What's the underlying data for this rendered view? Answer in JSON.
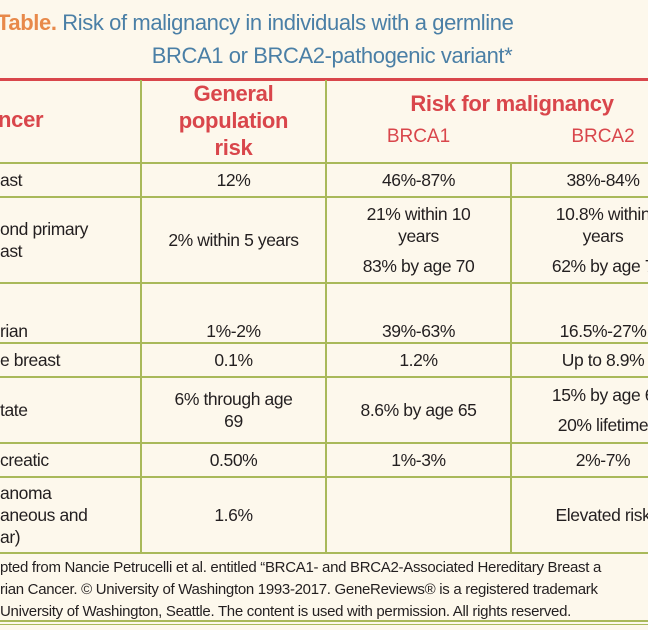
{
  "title": {
    "label": "Table.",
    "line1": "Risk of malignancy in individuals with a germline",
    "line2": "BRCA1 or BRCA2-pathogenic variant*"
  },
  "header": {
    "cancer": "ncer",
    "general": [
      "General",
      "population",
      "risk"
    ],
    "risk": "Risk for malignancy",
    "brca1": "BRCA1",
    "brca2": "BRCA2"
  },
  "rows": [
    {
      "cancer": [
        "ast"
      ],
      "general": [
        "12%"
      ],
      "brca1": [
        "46%-87%"
      ],
      "brca2": [
        "38%-84%"
      ]
    },
    {
      "cancer": [
        "ond primary",
        "ast"
      ],
      "general": [
        "2% within 5 years"
      ],
      "brca1": [
        "21% within 10",
        "years",
        "83% by age 70"
      ],
      "brca2": [
        "10.8% within",
        "years",
        "62% by age 7"
      ]
    },
    {
      "cancer": [
        "rian"
      ],
      "general": [
        "1%-2%"
      ],
      "brca1": [
        "39%-63%"
      ],
      "brca2": [
        "16.5%-27%"
      ]
    },
    {
      "cancer": [
        "e breast"
      ],
      "general": [
        "0.1%"
      ],
      "brca1": [
        "1.2%"
      ],
      "brca2": [
        "Up to 8.9%"
      ]
    },
    {
      "cancer": [
        "tate"
      ],
      "general": [
        "6% through age",
        "69"
      ],
      "brca1": [
        "8.6% by age 65"
      ],
      "brca2": [
        "15% by age 6",
        "20% lifetime"
      ]
    },
    {
      "cancer": [
        "creatic"
      ],
      "general": [
        "0.50%"
      ],
      "brca1": [
        "1%-3%"
      ],
      "brca2": [
        "2%-7%"
      ]
    },
    {
      "cancer": [
        "anoma",
        "aneous and",
        "ar)"
      ],
      "general": [
        "1.6%"
      ],
      "brca1": [],
      "brca2": [
        "Elevated risk"
      ]
    }
  ],
  "footnote": [
    "pted from Nancie Petrucelli  et al. entitled “BRCA1- and BRCA2-Associated Hereditary Breast a",
    "rian Cancer. © University of Washington 1993-2017. GeneReviews® is a registered trademark",
    "University of Washington, Seattle. The content is used with permission. All rights reserved."
  ]
}
